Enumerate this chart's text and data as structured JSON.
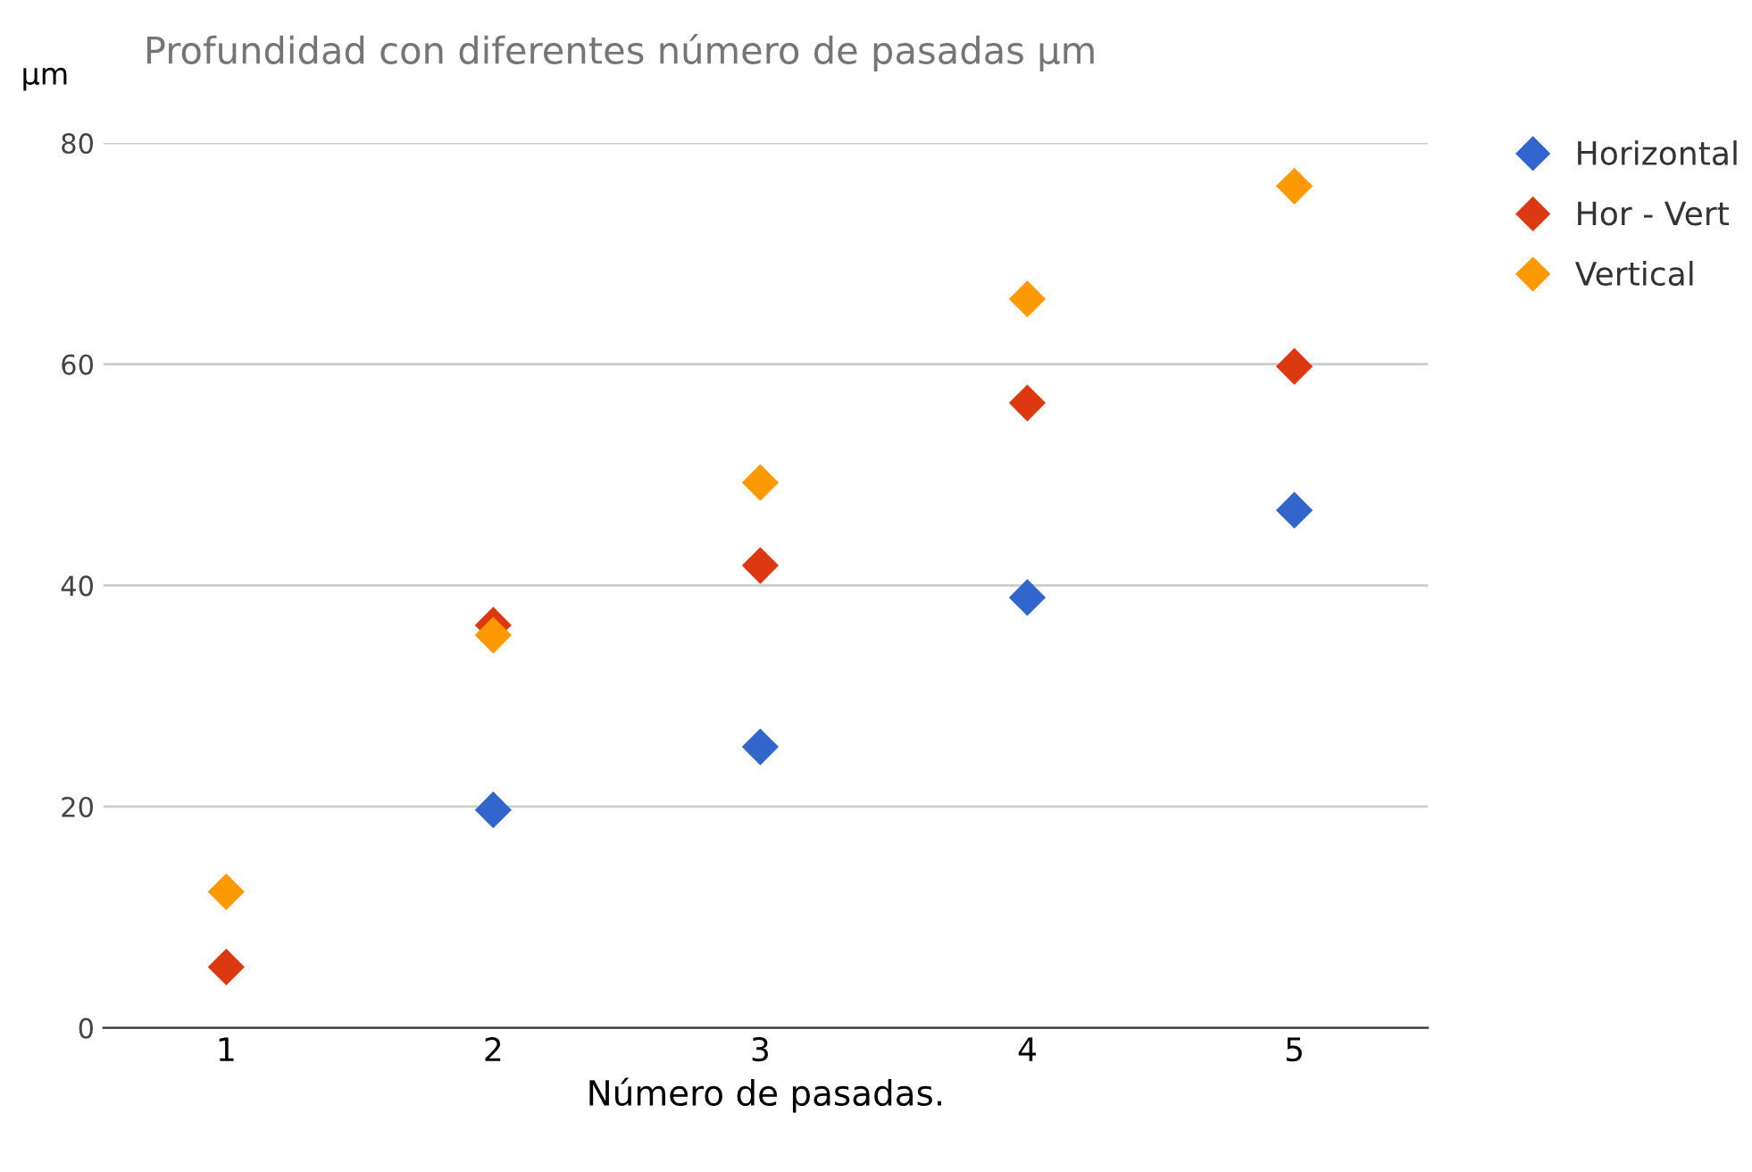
{
  "chart_data": {
    "type": "scatter",
    "title": "Profundidad con diferentes número de pasadas µm",
    "xlabel": "Número de pasadas.",
    "ylabel": "µm",
    "categories": [
      "1",
      "2",
      "3",
      "4",
      "5"
    ],
    "series": [
      {
        "name": "Horizontal",
        "color": "#3366cc",
        "values": [
          null,
          19.7,
          25.4,
          38.9,
          46.8
        ]
      },
      {
        "name": "Hor - Vert",
        "color": "#dc3912",
        "values": [
          5.5,
          36.4,
          41.8,
          56.5,
          59.8
        ]
      },
      {
        "name": "Vertical",
        "color": "#ff9900",
        "values": [
          12.3,
          35.5,
          49.3,
          65.9,
          76.1
        ]
      }
    ],
    "ylim": [
      0,
      80
    ],
    "yticks": [
      0,
      20,
      40,
      60,
      80
    ],
    "grid": "y",
    "legend": "top right",
    "marker": "diamond"
  }
}
